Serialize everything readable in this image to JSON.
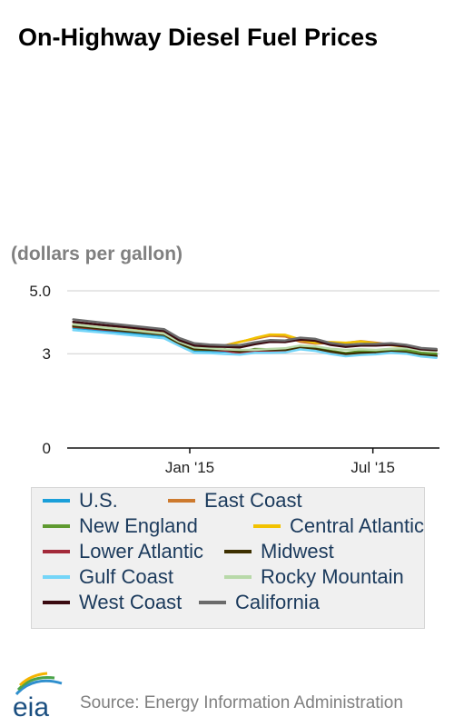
{
  "header": {
    "title": "On-Highway Diesel Fuel Prices",
    "units": "(dollars per gallon)"
  },
  "footer": {
    "logo_text": "eia",
    "source": "Source: Energy Information Administration"
  },
  "chart_data": {
    "type": "line",
    "title": "On-Highway Diesel Fuel Prices",
    "ylabel": "(dollars per gallon)",
    "xlabel": "",
    "ylim": [
      0,
      5
    ],
    "y_ticks": [
      0,
      3,
      5
    ],
    "y_tick_labels": [
      "0",
      "3",
      "5.0"
    ],
    "x_tick_labels": [
      "Jan '15",
      "Jul '15"
    ],
    "x_tick_positions": [
      8.35,
      14.4
    ],
    "x": [
      4.5,
      5.5,
      6.5,
      7.5,
      8.0,
      8.5,
      9.0,
      9.5,
      10.0,
      10.5,
      11.0,
      11.5,
      12.0,
      12.5,
      13.0,
      13.5,
      14.0,
      14.5,
      15.0,
      15.5,
      16.0,
      16.5
    ],
    "xlim": [
      4.3,
      16.6
    ],
    "grid": true,
    "legend_position": "bottom",
    "series": [
      {
        "name": "U.S.",
        "color": "#1a9fd9",
        "values": [
          3.82,
          3.73,
          3.64,
          3.56,
          3.29,
          3.1,
          3.08,
          3.07,
          3.05,
          3.12,
          3.13,
          3.12,
          3.23,
          3.17,
          3.07,
          3.0,
          3.06,
          3.07,
          3.12,
          3.1,
          3.01,
          2.98
        ]
      },
      {
        "name": "East Coast",
        "color": "#cd7a2e",
        "values": [
          3.93,
          3.83,
          3.75,
          3.65,
          3.37,
          3.22,
          3.2,
          3.26,
          3.38,
          3.47,
          3.57,
          3.55,
          3.38,
          3.32,
          3.34,
          3.34,
          3.4,
          3.35,
          3.29,
          3.24,
          3.16,
          3.13
        ]
      },
      {
        "name": "New England",
        "color": "#5f9a30",
        "values": [
          3.85,
          3.78,
          3.69,
          3.6,
          3.3,
          3.13,
          3.12,
          3.1,
          3.05,
          3.15,
          3.14,
          3.15,
          3.24,
          3.19,
          3.09,
          3.02,
          3.08,
          3.09,
          3.14,
          3.11,
          3.03,
          3.0
        ]
      },
      {
        "name": "Central Atlantic",
        "color": "#f2c200",
        "values": [
          3.91,
          3.82,
          3.74,
          3.64,
          3.35,
          3.2,
          3.18,
          3.25,
          3.37,
          3.5,
          3.61,
          3.6,
          3.45,
          3.35,
          3.37,
          3.35,
          3.39,
          3.33,
          3.27,
          3.22,
          3.15,
          3.12
        ]
      },
      {
        "name": "Lower Atlantic",
        "color": "#a32a3a",
        "values": [
          3.86,
          3.77,
          3.7,
          3.61,
          3.33,
          3.15,
          3.13,
          3.1,
          3.02,
          3.07,
          3.1,
          3.09,
          3.18,
          3.13,
          3.01,
          2.95,
          3.0,
          3.02,
          3.06,
          3.04,
          2.95,
          2.92
        ]
      },
      {
        "name": "Midwest",
        "color": "#3d3000",
        "values": [
          3.88,
          3.79,
          3.7,
          3.61,
          3.32,
          3.15,
          3.13,
          3.14,
          3.07,
          3.13,
          3.12,
          3.12,
          3.18,
          3.15,
          3.07,
          2.99,
          3.03,
          3.03,
          3.06,
          3.04,
          2.96,
          2.93
        ]
      },
      {
        "name": "Gulf Coast",
        "color": "#74d5f8",
        "values": [
          3.75,
          3.67,
          3.58,
          3.49,
          3.25,
          3.03,
          3.02,
          2.99,
          2.97,
          3.03,
          3.03,
          3.04,
          3.14,
          3.09,
          2.99,
          2.92,
          2.96,
          2.98,
          3.03,
          3.0,
          2.91,
          2.87
        ]
      },
      {
        "name": "Rocky Mountain",
        "color": "#b8d9a9",
        "values": [
          3.93,
          3.83,
          3.74,
          3.64,
          3.38,
          3.2,
          3.17,
          3.14,
          3.12,
          3.12,
          3.15,
          3.17,
          3.26,
          3.23,
          3.16,
          3.12,
          3.14,
          3.12,
          3.16,
          3.17,
          3.12,
          3.09
        ]
      },
      {
        "name": "West Coast",
        "color": "#3a0a10",
        "values": [
          4.01,
          3.91,
          3.82,
          3.72,
          3.43,
          3.26,
          3.23,
          3.22,
          3.2,
          3.3,
          3.38,
          3.37,
          3.45,
          3.41,
          3.28,
          3.22,
          3.26,
          3.26,
          3.28,
          3.23,
          3.14,
          3.11
        ]
      },
      {
        "name": "California",
        "color": "#6b6b6b",
        "values": [
          4.09,
          3.98,
          3.88,
          3.78,
          3.5,
          3.33,
          3.29,
          3.27,
          3.27,
          3.36,
          3.43,
          3.42,
          3.51,
          3.47,
          3.34,
          3.28,
          3.31,
          3.31,
          3.33,
          3.28,
          3.18,
          3.15
        ]
      }
    ]
  }
}
